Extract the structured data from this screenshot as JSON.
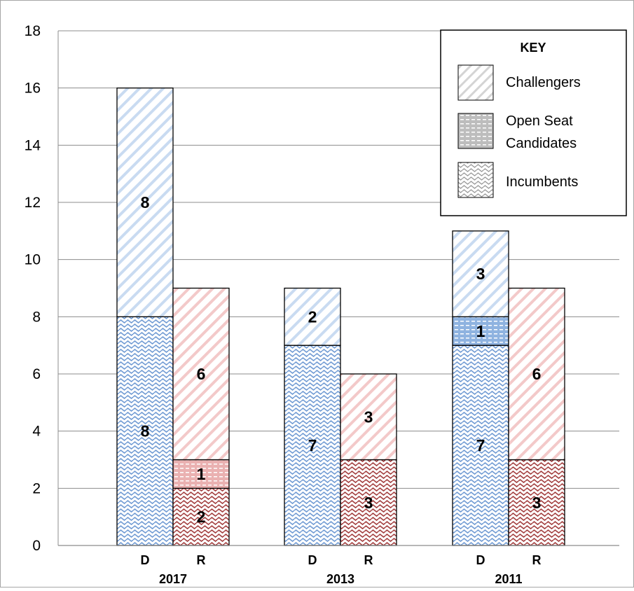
{
  "chart_data": {
    "type": "bar",
    "stacked": true,
    "groups": [
      "2017",
      "2013",
      "2011"
    ],
    "parties": [
      "D",
      "R"
    ],
    "series": [
      {
        "name": "Incumbents",
        "pattern": "wave"
      },
      {
        "name": "Open Seat Candidates",
        "pattern": "dash"
      },
      {
        "name": "Challengers",
        "pattern": "diagonal"
      }
    ],
    "bars": [
      {
        "group": "2017",
        "party": "D",
        "values": [
          8,
          0,
          8
        ],
        "labels": [
          "8",
          "",
          "8"
        ]
      },
      {
        "group": "2017",
        "party": "R",
        "values": [
          2,
          1,
          6
        ],
        "labels": [
          "2",
          "1",
          "6"
        ]
      },
      {
        "group": "2013",
        "party": "D",
        "values": [
          7,
          0,
          2
        ],
        "labels": [
          "7",
          "",
          "2"
        ]
      },
      {
        "group": "2013",
        "party": "R",
        "values": [
          3,
          0,
          3
        ],
        "labels": [
          "3",
          "",
          "3"
        ]
      },
      {
        "group": "2011",
        "party": "D",
        "values": [
          7,
          1,
          3
        ],
        "labels": [
          "7",
          "1",
          "3"
        ]
      },
      {
        "group": "2011",
        "party": "R",
        "values": [
          3,
          0,
          6
        ],
        "labels": [
          "3",
          "",
          "6"
        ]
      }
    ],
    "yticks": [
      "0",
      "2",
      "4",
      "6",
      "8",
      "10",
      "12",
      "14",
      "16",
      "18"
    ],
    "ylim": [
      0,
      18
    ],
    "grid": true,
    "legend": {
      "title": "KEY",
      "placement": "top-right",
      "items": [
        {
          "label": "Challengers",
          "pattern": "diagonal"
        },
        {
          "label": "Open Seat Candidates",
          "lines": [
            "Open Seat",
            "Candidates"
          ],
          "pattern": "dash"
        },
        {
          "label": "Incumbents",
          "pattern": "wave"
        }
      ]
    },
    "colors": {
      "D": "#7fa7d8",
      "R": "#c86a6a",
      "R_dark": "#a23d3d",
      "grid": "#8c8c8c",
      "outline": "#000000"
    }
  }
}
